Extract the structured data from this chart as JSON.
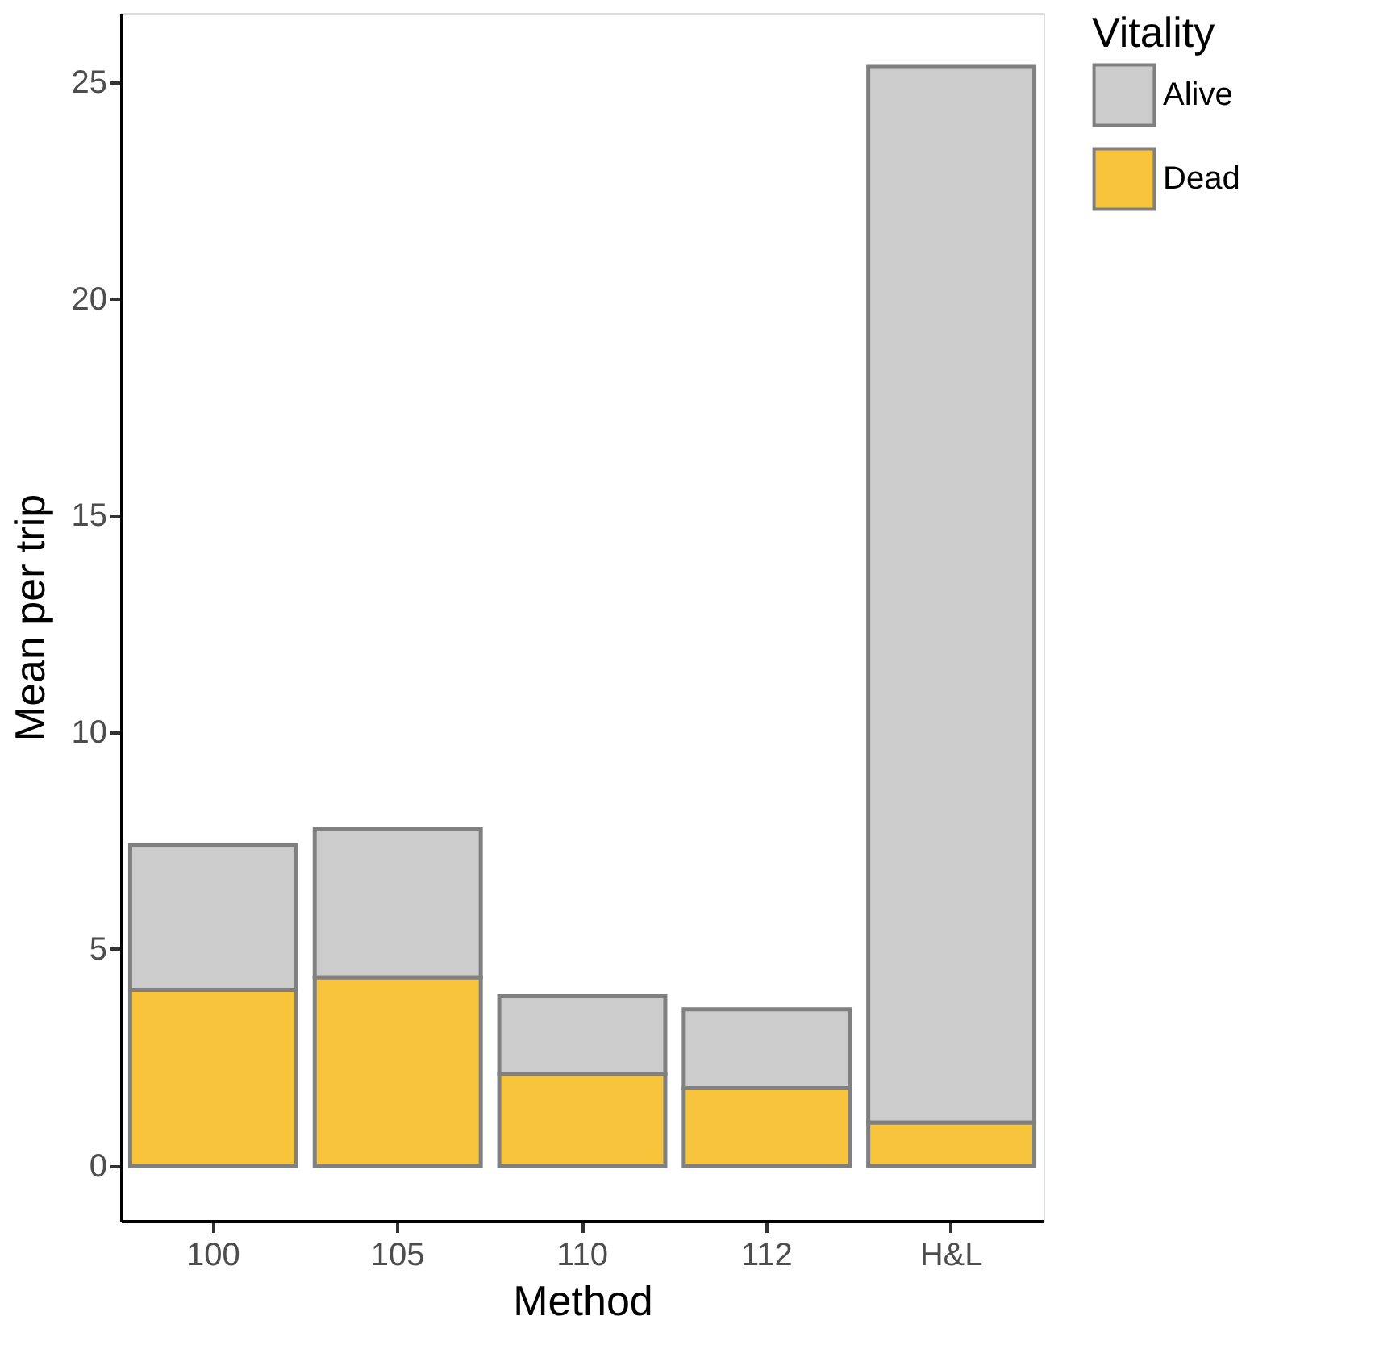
{
  "chart_data": {
    "type": "bar",
    "stacked": true,
    "xlabel": "Method",
    "ylabel": "Mean per trip",
    "legend_title": "Vitality",
    "legend": "right",
    "grid": false,
    "categories": [
      "100",
      "105",
      "110",
      "112",
      "H&L"
    ],
    "series": [
      {
        "name": "Dead",
        "color": "#f8c43c",
        "values": [
          4.06,
          4.35,
          2.12,
          1.79,
          1.0
        ]
      },
      {
        "name": "Alive",
        "color": "#cccccc",
        "values": [
          3.34,
          3.43,
          1.79,
          1.82,
          24.37
        ]
      }
    ],
    "ylim": [
      -1.27,
      26.6
    ],
    "yticks": [
      0,
      5,
      10,
      15,
      20,
      25
    ]
  }
}
